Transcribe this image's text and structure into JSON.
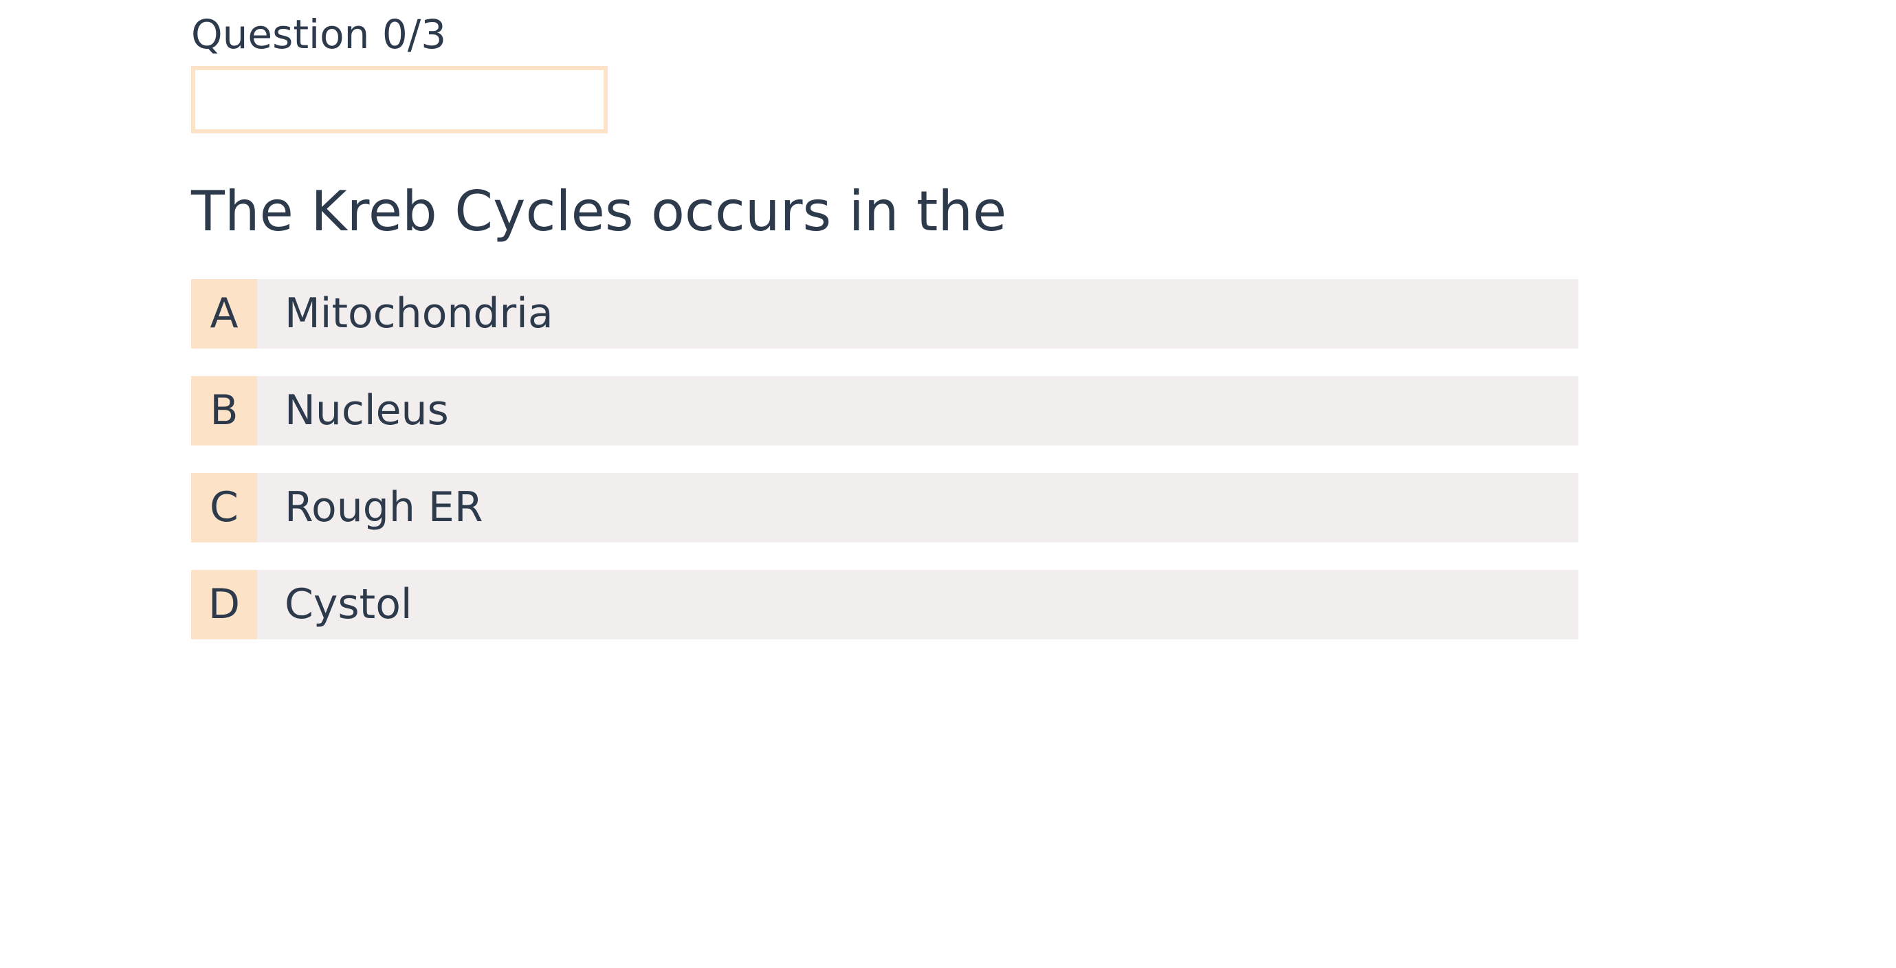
{
  "quiz": {
    "counter": "Question 0/3",
    "progress_percent": 0,
    "question": "The Kreb Cycles occurs in the",
    "options": [
      {
        "letter": "A",
        "text": "Mitochondria"
      },
      {
        "letter": "B",
        "text": "Nucleus"
      },
      {
        "letter": "C",
        "text": "Rough ER"
      },
      {
        "letter": "D",
        "text": "Cystol"
      }
    ]
  },
  "colors": {
    "text": "#2d3a4b",
    "accent": "#fce3c7",
    "option_background": "#f2eeed",
    "page_background": "#ffffff"
  }
}
